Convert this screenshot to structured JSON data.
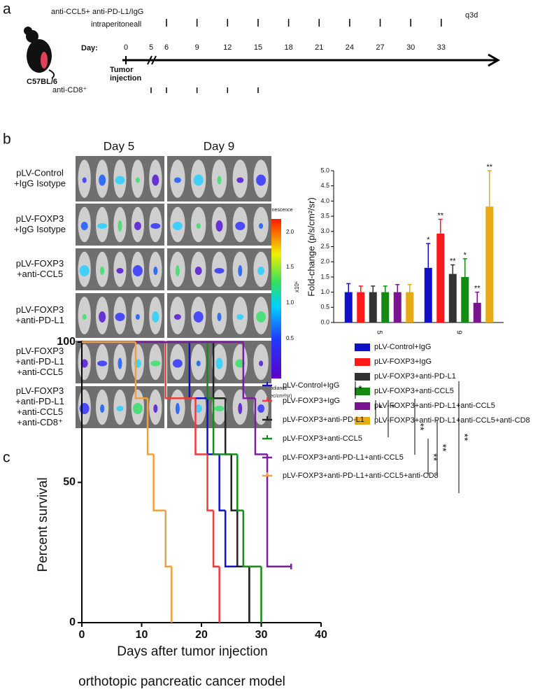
{
  "panel_labels": [
    "a",
    "b",
    "c"
  ],
  "timeline": {
    "treatment": "anti-CCL5+ anti-PD-L1/IgG",
    "route": "intraperitoneall",
    "frequency": "q3d",
    "day_label": "Day:",
    "days": [
      0,
      5,
      6,
      9,
      12,
      15,
      18,
      21,
      24,
      27,
      30,
      33
    ],
    "treatment_days": [
      6,
      9,
      12,
      15,
      18,
      21,
      24,
      27,
      30,
      33
    ],
    "cd8_days": [
      5,
      6,
      9,
      12,
      15
    ],
    "tumor_injection": [
      "Tumor",
      "injection"
    ],
    "cd8": "anti-CD8⁺",
    "mouse": "C57BL/6"
  },
  "imaging": {
    "columns": [
      "Day 5",
      "Day 9"
    ],
    "rows": [
      [
        "pLV-Control",
        "+IgG Isotype"
      ],
      [
        "pLV-FOXP3",
        "+IgG Isotype"
      ],
      [
        "pLV-FOXP3",
        "+anti-CCL5"
      ],
      [
        "pLV-FOXP3",
        "+anti-PD-L1"
      ],
      [
        "pLV-FOXP3",
        "+anti-PD-L1",
        "+anti-CCL5"
      ],
      [
        "pLV-FOXP3",
        "+anti-PD-L1",
        "+anti-CCL5",
        "+anti-CD8⁺"
      ]
    ],
    "colorbar_title": "Luminescence",
    "colorbar_ticks": [
      "2.0",
      "1.5",
      "1.0",
      "0.5"
    ],
    "colorbar_scale": "x10⁶",
    "colorbar_unit": [
      "Radiance",
      "(p/sec/cm²/sr)"
    ]
  },
  "chart_data": [
    {
      "type": "bar",
      "y_label": "Fold-change (p/s/cm²/sr)",
      "categories": [
        "5",
        "9"
      ],
      "ylim": [
        0,
        5
      ],
      "yticks": [
        {
          "value": 0,
          "label": "0.0"
        },
        0.5,
        {
          "value": 1,
          "label": "1.0"
        },
        1.5,
        {
          "value": 2,
          "label": "2.0"
        },
        2.5,
        {
          "value": 3,
          "label": "3.0"
        },
        3.5,
        {
          "value": 4,
          "label": "4.0"
        },
        4.5,
        {
          "value": 5,
          "label": "5.0"
        }
      ],
      "series": [
        {
          "name": "pLV-Control+IgG",
          "color": "#1010c8",
          "values": [
            1.0,
            1.8
          ],
          "errors": [
            0.28,
            0.8
          ]
        },
        {
          "name": "pLV-FOXP3+IgG",
          "color": "#ff1a1a",
          "values": [
            1.0,
            2.93
          ],
          "errors": [
            0.2,
            0.47
          ]
        },
        {
          "name": "pLV-FOXP3+anti-PD-L1",
          "color": "#333333",
          "values": [
            1.0,
            1.6
          ],
          "errors": [
            0.2,
            0.3
          ]
        },
        {
          "name": "pLV-FOXP3+anti-CCL5",
          "color": "#148a14",
          "values": [
            1.0,
            1.5
          ],
          "errors": [
            0.2,
            0.6
          ]
        },
        {
          "name": "pLV-FOXP3+anti-PD-L1+anti-CCL5",
          "color": "#7a1390",
          "values": [
            1.0,
            0.65
          ],
          "errors": [
            0.25,
            0.35
          ]
        },
        {
          "name": "pLV-FOXP3+anti-PD-L1+anti-CCL5+anti-CD8",
          "color": "#e8a917",
          "values": [
            1.0,
            3.82
          ],
          "errors": [
            0.25,
            1.18
          ]
        }
      ],
      "annotations": [
        "*",
        "**",
        "**",
        "*",
        "**",
        "**"
      ]
    },
    {
      "type": "step",
      "x_label": "Days after tumor injection",
      "y_label": "Percent survival",
      "caption": "orthotopic pancreatic cancer model",
      "xlim": [
        0,
        40
      ],
      "xticks": [
        0,
        10,
        20,
        30,
        40
      ],
      "ylim": [
        0,
        100
      ],
      "yticks": [
        0,
        50,
        100
      ],
      "series": [
        {
          "name": "pLV-Control+IgG",
          "color": "#1010c8",
          "x": [
            0,
            18,
            21,
            23,
            24,
            28
          ],
          "values": [
            100,
            80,
            60,
            40,
            20,
            0
          ]
        },
        {
          "name": "pLV-FOXP3+IgG",
          "color": "#ee3b3b",
          "x": [
            0,
            14,
            19,
            21,
            22,
            23
          ],
          "values": [
            100,
            80,
            60,
            40,
            20,
            0
          ]
        },
        {
          "name": "pLV-FOXP3+anti-PD-L1",
          "color": "#222222",
          "x": [
            0,
            22,
            24,
            25,
            26,
            28
          ],
          "values": [
            100,
            80,
            60,
            40,
            20,
            0
          ]
        },
        {
          "name": "pLV-FOXP3+anti-CCL5",
          "color": "#1a8a1a",
          "x": [
            0,
            21,
            22,
            26,
            27,
            30
          ],
          "values": [
            100,
            80,
            60,
            40,
            20,
            0
          ]
        },
        {
          "name": "pLV-FOXP3+anti-PD-L1+anti-CCL5",
          "color": "#7a1fa0",
          "x": [
            0,
            27,
            29,
            31,
            35
          ],
          "values": [
            100,
            80,
            60,
            20,
            20
          ]
        },
        {
          "name": "pLV-FOXP3+anti-PD-L1+anti-CCL5+anti-CD8",
          "color": "#f0a040",
          "x": [
            0,
            9,
            11,
            12,
            14,
            15
          ],
          "values": [
            100,
            80,
            60,
            40,
            20,
            0
          ]
        }
      ],
      "annotations": [
        "*",
        "*",
        "*",
        "**",
        "**",
        "**",
        "**"
      ]
    }
  ]
}
